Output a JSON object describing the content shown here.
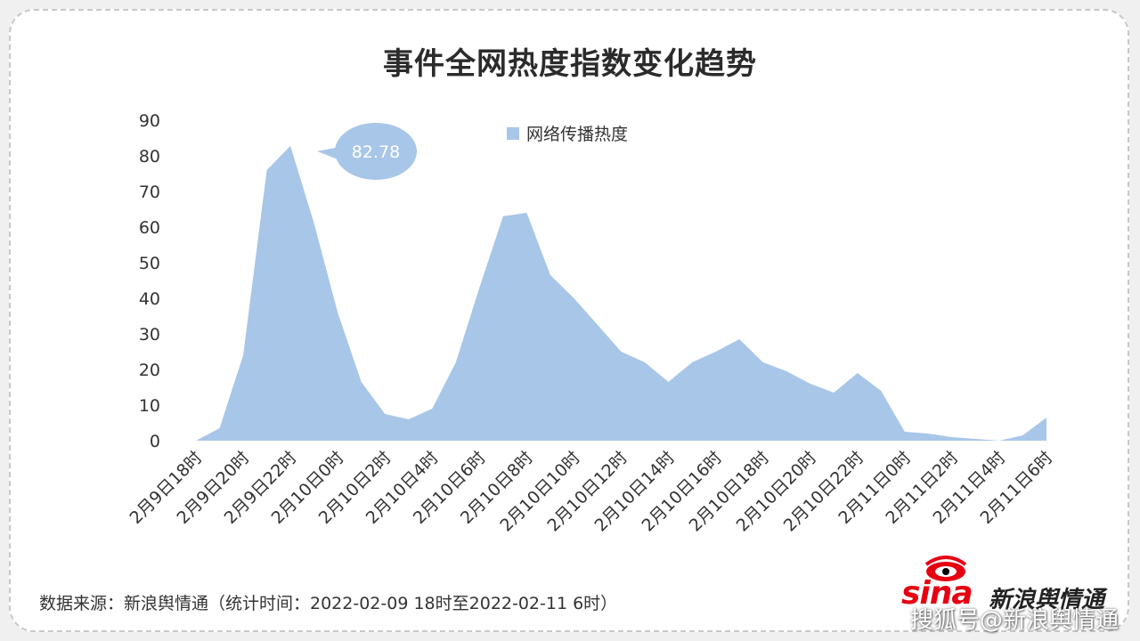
{
  "title": "事件全网热度指数变化趋势",
  "source_note": "数据来源：新浪舆情通（统计时间：2022-02-09 18时至2022-02-11 6时）",
  "brand": {
    "logo_text": "sina",
    "name": "新浪舆情通"
  },
  "watermark": "搜狐号@新浪舆情通",
  "colors": {
    "area": "#a8c6e8",
    "callout": "#a8c6e8",
    "text": "#333333"
  },
  "chart_data": {
    "type": "area",
    "title": "事件全网热度指数变化趋势",
    "xlabel": "",
    "ylabel": "",
    "ylim": [
      0,
      90
    ],
    "yticks": [
      0,
      10,
      20,
      30,
      40,
      50,
      60,
      70,
      80,
      90
    ],
    "grid": false,
    "legend_position": "top-center",
    "x_tick_labels": [
      "2月9日18时",
      "2月9日20时",
      "2月9日22时",
      "2月10日0时",
      "2月10日2时",
      "2月10日4时",
      "2月10日6时",
      "2月10日8时",
      "2月10日10时",
      "2月10日12时",
      "2月10日14时",
      "2月10日16时",
      "2月10日18时",
      "2月10日20时",
      "2月10日22时",
      "2月11日0时",
      "2月11日2时",
      "2月11日4时",
      "2月11日6时"
    ],
    "x": [
      "2月9日18时",
      "2月9日19时",
      "2月9日20时",
      "2月9日21时",
      "2月9日22时",
      "2月9日23时",
      "2月10日0时",
      "2月10日1时",
      "2月10日2时",
      "2月10日3时",
      "2月10日4时",
      "2月10日5时",
      "2月10日6时",
      "2月10日7时",
      "2月10日8时",
      "2月10日9时",
      "2月10日10时",
      "2月10日11时",
      "2月10日12时",
      "2月10日13时",
      "2月10日14时",
      "2月10日15时",
      "2月10日16时",
      "2月10日17时",
      "2月10日18时",
      "2月10日19时",
      "2月10日20时",
      "2月10日21时",
      "2月10日22时",
      "2月10日23时",
      "2月11日0时",
      "2月11日1时",
      "2月11日2时",
      "2月11日3时",
      "2月11日4时",
      "2月11日5时",
      "2月11日6时"
    ],
    "series": [
      {
        "name": "网络传播热度",
        "values": [
          0,
          3.5,
          24,
          76,
          82.78,
          61,
          36,
          16.5,
          7.5,
          6,
          9,
          22,
          43,
          63,
          64,
          46.5,
          40,
          32.5,
          25,
          22,
          16.5,
          22,
          25,
          28.5,
          22,
          19.5,
          16,
          13.5,
          19,
          14,
          2.5,
          2,
          1,
          0.5,
          0,
          1.5,
          6.5
        ]
      }
    ],
    "annotations": [
      {
        "label": "82.78",
        "x": "2月9日22时",
        "value": 82.78
      }
    ]
  }
}
